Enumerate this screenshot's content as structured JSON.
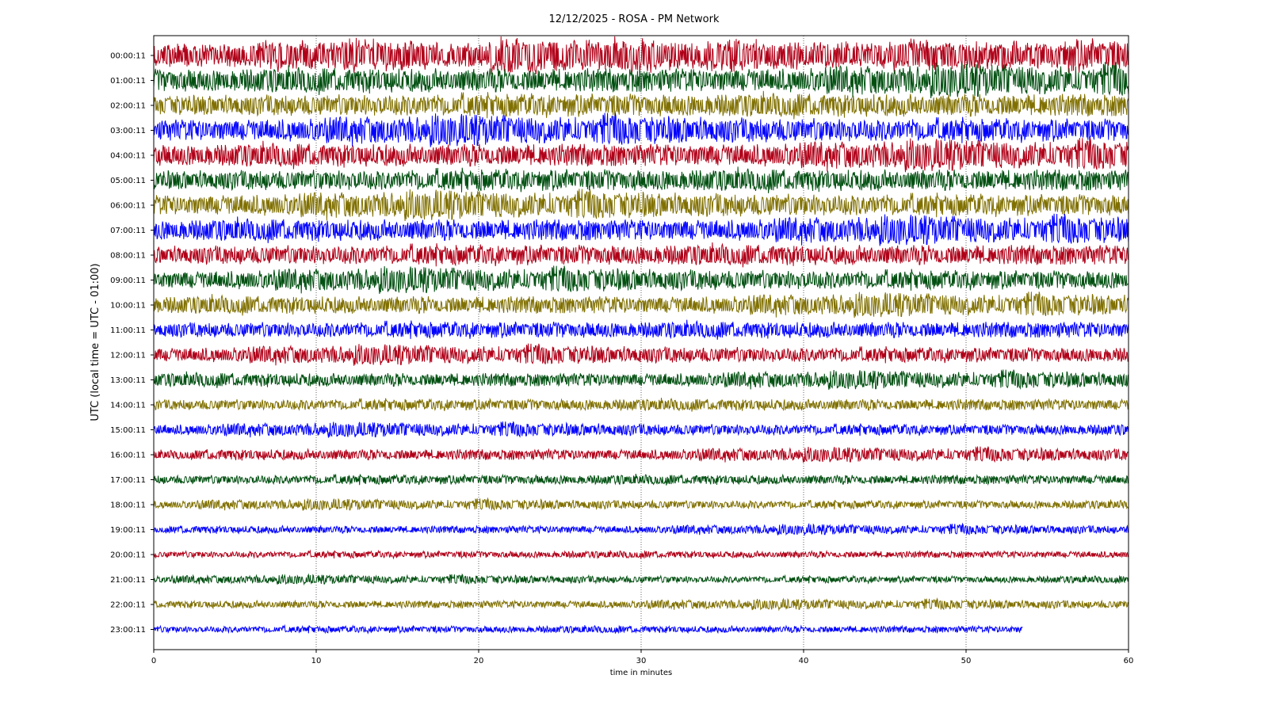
{
  "chart_data": {
    "type": "line",
    "title": "12/12/2025 - ROSA - PM Network",
    "xlabel": "time in minutes",
    "ylabel": "UTC (local time = UTC - 01:00)",
    "xlim": [
      0,
      60
    ],
    "x_ticks": [
      "0",
      "10",
      "20",
      "30",
      "40",
      "50",
      "60"
    ],
    "grid": "vertical dotted at x ticks",
    "colors": [
      "#b00018",
      "#004f10",
      "#807000",
      "#0000ff"
    ],
    "series": [
      {
        "name": "00:00:11",
        "amplitude": 0.95,
        "end_minute": 60
      },
      {
        "name": "01:00:11",
        "amplitude": 0.9,
        "end_minute": 60
      },
      {
        "name": "02:00:11",
        "amplitude": 0.85,
        "end_minute": 60
      },
      {
        "name": "03:00:11",
        "amplitude": 0.85,
        "end_minute": 60
      },
      {
        "name": "04:00:11",
        "amplitude": 0.85,
        "end_minute": 60
      },
      {
        "name": "05:00:11",
        "amplitude": 0.8,
        "end_minute": 60
      },
      {
        "name": "06:00:11",
        "amplitude": 0.8,
        "end_minute": 60
      },
      {
        "name": "07:00:11",
        "amplitude": 0.8,
        "end_minute": 60
      },
      {
        "name": "08:00:11",
        "amplitude": 0.75,
        "end_minute": 60
      },
      {
        "name": "09:00:11",
        "amplitude": 0.7,
        "end_minute": 60
      },
      {
        "name": "10:00:11",
        "amplitude": 0.65,
        "end_minute": 60
      },
      {
        "name": "11:00:11",
        "amplitude": 0.6,
        "end_minute": 60
      },
      {
        "name": "12:00:11",
        "amplitude": 0.55,
        "end_minute": 60
      },
      {
        "name": "13:00:11",
        "amplitude": 0.5,
        "end_minute": 60
      },
      {
        "name": "14:00:11",
        "amplitude": 0.42,
        "end_minute": 60
      },
      {
        "name": "15:00:11",
        "amplitude": 0.4,
        "end_minute": 60
      },
      {
        "name": "16:00:11",
        "amplitude": 0.4,
        "end_minute": 60
      },
      {
        "name": "17:00:11",
        "amplitude": 0.35,
        "end_minute": 60
      },
      {
        "name": "18:00:11",
        "amplitude": 0.3,
        "end_minute": 60
      },
      {
        "name": "19:00:11",
        "amplitude": 0.28,
        "end_minute": 60
      },
      {
        "name": "20:00:11",
        "amplitude": 0.25,
        "end_minute": 60
      },
      {
        "name": "21:00:11",
        "amplitude": 0.25,
        "end_minute": 60
      },
      {
        "name": "22:00:11",
        "amplitude": 0.28,
        "end_minute": 60
      },
      {
        "name": "23:00:11",
        "amplitude": 0.25,
        "end_minute": 53.5
      }
    ]
  }
}
